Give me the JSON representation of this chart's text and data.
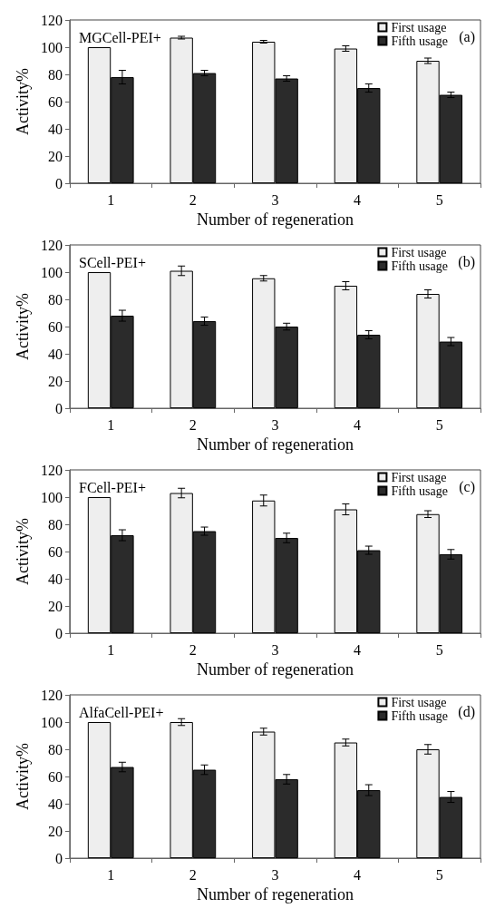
{
  "chart_data": [
    {
      "type": "bar",
      "title": "MGCell-PEI+",
      "xlabel": "Number of regeneration",
      "ylabel": "Activity%",
      "annotations": [
        "(a)"
      ],
      "categories": [
        "1",
        "2",
        "3",
        "4",
        "5"
      ],
      "series": [
        {
          "name": "First usage",
          "color": "#eeeeee",
          "values": [
            100,
            107,
            104,
            99,
            90
          ],
          "errors": [
            null,
            1,
            1,
            2,
            2
          ]
        },
        {
          "name": "Fifth usage",
          "color": "#2b2b2b",
          "values": [
            78,
            81,
            77,
            70,
            65
          ],
          "errors": [
            5,
            2,
            2,
            3,
            2
          ]
        }
      ],
      "ylim": [
        0,
        120
      ],
      "yticks": [
        0,
        20,
        40,
        60,
        80,
        100,
        120
      ],
      "grid": false,
      "legend": "top right"
    },
    {
      "type": "bar",
      "title": "SCell-PEI+",
      "xlabel": "Number of regeneration",
      "ylabel": "Activity%",
      "annotations": [
        "(b)"
      ],
      "categories": [
        "1",
        "2",
        "3",
        "4",
        "5"
      ],
      "series": [
        {
          "name": "First usage",
          "color": "#eeeeee",
          "values": [
            100,
            101,
            95.5,
            90,
            84
          ],
          "errors": [
            null,
            3.5,
            2,
            3,
            3
          ]
        },
        {
          "name": "Fifth usage",
          "color": "#2b2b2b",
          "values": [
            68,
            64,
            60,
            54,
            49
          ],
          "errors": [
            4,
            3,
            2.5,
            3,
            3
          ]
        }
      ],
      "ylim": [
        0,
        120
      ],
      "yticks": [
        0,
        20,
        40,
        60,
        80,
        100,
        120
      ],
      "grid": false,
      "legend": "top right"
    },
    {
      "type": "bar",
      "title": "FCell-PEI+",
      "xlabel": "Number of regeneration",
      "ylabel": "Activity%",
      "annotations": [
        "(c)"
      ],
      "categories": [
        "1",
        "2",
        "3",
        "4",
        "5"
      ],
      "series": [
        {
          "name": "First usage",
          "color": "#eeeeee",
          "values": [
            100,
            103,
            97.5,
            91,
            87.5
          ],
          "errors": [
            null,
            3.5,
            4,
            4,
            2.5
          ]
        },
        {
          "name": "Fifth usage",
          "color": "#2b2b2b",
          "values": [
            72,
            75,
            70,
            61,
            58
          ],
          "errors": [
            4,
            3,
            3.5,
            3,
            3.5
          ]
        }
      ],
      "ylim": [
        0,
        120
      ],
      "yticks": [
        0,
        20,
        40,
        60,
        80,
        100,
        120
      ],
      "grid": false,
      "legend": "top right"
    },
    {
      "type": "bar",
      "title": "AlfaCell-PEI+",
      "xlabel": "Number of regeneration",
      "ylabel": "Activity%",
      "annotations": [
        "(d)"
      ],
      "categories": [
        "1",
        "2",
        "3",
        "4",
        "5"
      ],
      "series": [
        {
          "name": "First usage",
          "color": "#eeeeee",
          "values": [
            100,
            100,
            93,
            85,
            80
          ],
          "errors": [
            null,
            2.5,
            2.5,
            2.5,
            3.5
          ]
        },
        {
          "name": "Fifth usage",
          "color": "#2b2b2b",
          "values": [
            67,
            65,
            58,
            50,
            45
          ],
          "errors": [
            3.5,
            3.5,
            3.5,
            4,
            4
          ]
        }
      ],
      "ylim": [
        0,
        120
      ],
      "yticks": [
        0,
        20,
        40,
        60,
        80,
        100,
        120
      ],
      "grid": false,
      "legend": "top right"
    }
  ]
}
